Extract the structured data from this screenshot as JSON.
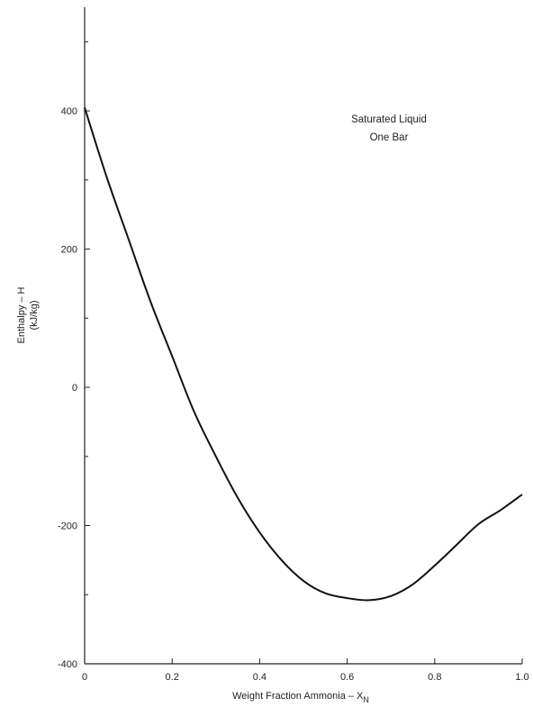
{
  "chart_data": {
    "type": "line",
    "title": "",
    "xlabel": "Weight Fraction Ammonia – X",
    "xlabel_subscript": "N",
    "ylabel_line1": "Enthalpy – H",
    "ylabel_line2": "(kJ/kg)",
    "xlim": [
      0,
      1.0
    ],
    "ylim": [
      -400,
      550
    ],
    "x_ticks": [
      0,
      0.2,
      0.4,
      0.6,
      0.8,
      1.0
    ],
    "x_tick_labels": [
      "0",
      "0.2",
      "0.4",
      "0.6",
      "0.8",
      "1.0"
    ],
    "y_ticks": [
      -400,
      -200,
      0,
      200,
      400
    ],
    "y_tick_labels": [
      "-400",
      "-200",
      "0",
      "200",
      "400"
    ],
    "y_minor_ticks": [
      -300,
      -100,
      100,
      300,
      500
    ],
    "grid": false,
    "annotations": [
      "Saturated Liquid",
      "One Bar"
    ],
    "series": [
      {
        "name": "",
        "color": "#111111",
        "x": [
          0,
          0.05,
          0.1,
          0.15,
          0.2,
          0.25,
          0.3,
          0.35,
          0.4,
          0.45,
          0.5,
          0.55,
          0.6,
          0.65,
          0.7,
          0.75,
          0.8,
          0.85,
          0.9,
          0.95,
          1.0
        ],
        "y": [
          405,
          305,
          215,
          125,
          45,
          -35,
          -100,
          -160,
          -210,
          -250,
          -280,
          -298,
          -305,
          -308,
          -302,
          -285,
          -258,
          -228,
          -198,
          -178,
          -155
        ]
      }
    ]
  }
}
